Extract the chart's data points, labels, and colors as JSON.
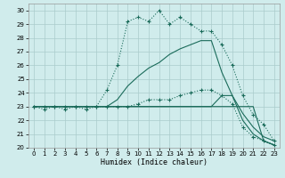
{
  "xlabel": "Humidex (Indice chaleur)",
  "xlim": [
    -0.5,
    23.5
  ],
  "ylim": [
    20,
    30.5
  ],
  "yticks": [
    20,
    21,
    22,
    23,
    24,
    25,
    26,
    27,
    28,
    29,
    30
  ],
  "xticks": [
    0,
    1,
    2,
    3,
    4,
    5,
    6,
    7,
    8,
    9,
    10,
    11,
    12,
    13,
    14,
    15,
    16,
    17,
    18,
    19,
    20,
    21,
    22,
    23
  ],
  "bg_color": "#d0ecec",
  "grid_color": "#aacccc",
  "line_color": "#1a6b5a",
  "hours": [
    0,
    1,
    2,
    3,
    4,
    5,
    6,
    7,
    8,
    9,
    10,
    11,
    12,
    13,
    14,
    15,
    16,
    17,
    18,
    19,
    20,
    21,
    22,
    23
  ],
  "line_main": [
    23.0,
    23.0,
    23.0,
    23.0,
    23.0,
    23.0,
    23.0,
    24.2,
    26.0,
    29.2,
    29.5,
    29.2,
    30.0,
    29.0,
    29.5,
    29.0,
    28.5,
    28.5,
    27.5,
    26.0,
    23.8,
    22.4,
    21.7,
    20.5
  ],
  "line_upper": [
    23.0,
    23.0,
    23.0,
    23.0,
    23.0,
    23.0,
    23.0,
    23.0,
    23.5,
    24.5,
    25.2,
    25.8,
    26.2,
    26.8,
    27.2,
    27.5,
    27.8,
    27.8,
    25.5,
    23.8,
    22.5,
    21.5,
    20.8,
    20.5
  ],
  "line_mid": [
    23.0,
    23.0,
    23.0,
    23.0,
    23.0,
    23.0,
    23.0,
    23.0,
    23.0,
    23.0,
    23.0,
    23.0,
    23.0,
    23.0,
    23.0,
    23.0,
    23.0,
    23.0,
    23.8,
    23.8,
    22.0,
    21.0,
    20.5,
    20.2
  ],
  "line_low": [
    23.0,
    23.0,
    23.0,
    23.0,
    23.0,
    23.0,
    23.0,
    23.0,
    23.0,
    23.0,
    23.0,
    23.0,
    23.0,
    23.0,
    23.0,
    23.0,
    23.0,
    23.0,
    23.0,
    23.0,
    23.0,
    23.0,
    20.5,
    20.2
  ],
  "line_wavy": [
    23.0,
    22.8,
    23.0,
    22.8,
    23.0,
    22.8,
    23.0,
    23.0,
    23.0,
    23.0,
    23.2,
    23.5,
    23.5,
    23.5,
    23.8,
    24.0,
    24.2,
    24.2,
    23.8,
    23.2,
    21.5,
    20.8,
    20.5,
    20.2
  ]
}
